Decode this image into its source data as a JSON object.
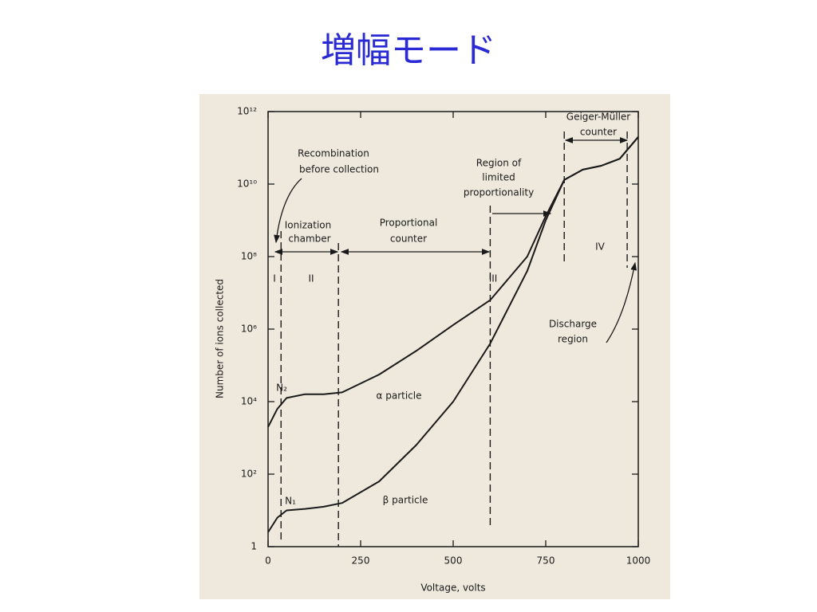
{
  "slide_title": "増幅モード",
  "chart_data": {
    "type": "line",
    "xlabel": "Voltage, volts",
    "ylabel": "Number of ions collected",
    "x": [
      0,
      25,
      50,
      100,
      150,
      200,
      300,
      400,
      500,
      600,
      700,
      750,
      800,
      850,
      900,
      950,
      1000
    ],
    "series": [
      {
        "name": "α particle",
        "color": "#1a1a1a",
        "values": [
          2000,
          6300,
          12600,
          16000,
          16000,
          18000,
          56000,
          250000,
          1300000,
          6300000,
          100000000,
          1300000000,
          13000000000,
          25000000000,
          32000000000,
          50000000000,
          200000000000
        ]
      },
      {
        "name": "β particle",
        "color": "#1a1a1a",
        "values": [
          2.5,
          6.3,
          10,
          11,
          12.6,
          16,
          63,
          630,
          10000,
          400000,
          40000000,
          1000000000,
          13000000000,
          25000000000,
          32000000000,
          50000000000,
          200000000000
        ]
      }
    ],
    "xlim": [
      0,
      1000
    ],
    "xticks": [
      0,
      250,
      500,
      750,
      1000
    ],
    "ylim": [
      1,
      1000000000000
    ],
    "log_y": true,
    "yticks": [
      1,
      {
        "value": 100,
        "label": "10²"
      },
      {
        "value": 10000,
        "label": "10⁴"
      },
      {
        "value": 1000000,
        "label": "10⁶"
      },
      {
        "value": 100000000,
        "label": "10⁸"
      },
      {
        "value": 10000000000,
        "label": "10¹⁰"
      },
      {
        "value": 1000000000000,
        "label": "10¹²"
      }
    ],
    "grid": false,
    "region_boundaries": [
      35,
      190,
      600,
      800,
      970
    ],
    "annotations": [
      "Recombination",
      "before collection",
      "Ionization",
      "chamber",
      "Proportional",
      "counter",
      "Region of",
      "limited",
      "proportionality",
      "Geiger-Müller",
      "counter",
      "I",
      "II",
      "III",
      "IV",
      "Discharge",
      "region",
      "α particle",
      "β particle",
      "N₂",
      "N₁"
    ]
  }
}
